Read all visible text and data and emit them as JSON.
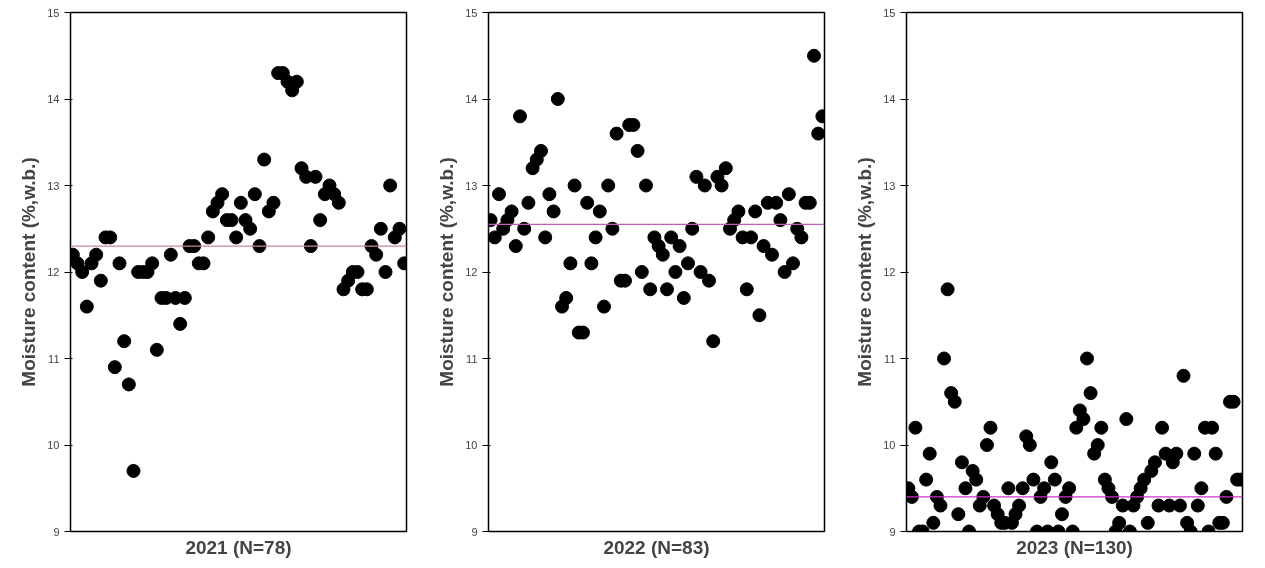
{
  "chart_data": [
    {
      "type": "scatter",
      "xlabel": "2021 (N=78)",
      "ylabel": "Moisture content (%,w.b.)",
      "ylim": [
        9,
        15
      ],
      "yticks": [
        9,
        10,
        11,
        12,
        13,
        14,
        15
      ],
      "tick_labels": "y",
      "marker": "circle",
      "grid": false,
      "categories": [
        null,
        null,
        null,
        null,
        null,
        null,
        null,
        null,
        null,
        null,
        null,
        null,
        null,
        null,
        null,
        null,
        null,
        null,
        null,
        null,
        null,
        null,
        null,
        null,
        null,
        null,
        null,
        null,
        null,
        null,
        null,
        null,
        null,
        null,
        null,
        null,
        null,
        null,
        null,
        null,
        null,
        null,
        null,
        null,
        null,
        null,
        null,
        null,
        null,
        null,
        null,
        null,
        null,
        null,
        null,
        null,
        null,
        null,
        null,
        null,
        null,
        null,
        null,
        null,
        null,
        null,
        null,
        null,
        null,
        null,
        null,
        null
      ],
      "series": [
        {
          "color": "#000000",
          "values": [
            12.2,
            12.1,
            12.0,
            11.6,
            12.1,
            12.2,
            11.9,
            12.4,
            12.4,
            10.9,
            12.1,
            11.2,
            10.7,
            9.7,
            12.0,
            12.0,
            12.0,
            12.1,
            11.1,
            11.7,
            11.7,
            12.2,
            11.7,
            11.4,
            11.7,
            12.3,
            12.3,
            12.1,
            12.1,
            12.4,
            12.7,
            12.8,
            12.9,
            12.6,
            12.6,
            12.4,
            12.8,
            12.6,
            12.5,
            12.9,
            12.3,
            13.3,
            12.7,
            12.8,
            14.3,
            14.3,
            14.2,
            14.1,
            14.2,
            13.2,
            13.1,
            12.3,
            13.1,
            12.6,
            12.9,
            13.0,
            12.9,
            12.8,
            11.8,
            11.9,
            12.0,
            12.0,
            11.8,
            11.8,
            12.3,
            12.2,
            12.5,
            12.0,
            13.0,
            12.4,
            12.5,
            12.1
          ]
        }
      ],
      "ref_lines": [
        {
          "axis": "y",
          "value": 12.3,
          "color": "#c8889a"
        }
      ]
    },
    {
      "type": "scatter",
      "xlabel": "2022 (N=83)",
      "ylabel": "Moisture content (%,w.b.)",
      "ylim": [
        9,
        15
      ],
      "yticks": [
        9,
        10,
        11,
        12,
        13,
        14,
        15
      ],
      "tick_labels": "y",
      "marker": "circle",
      "grid": false,
      "categories": [
        null,
        null,
        null,
        null,
        null,
        null,
        null,
        null,
        null,
        null,
        null,
        null,
        null,
        null,
        null,
        null,
        null,
        null,
        null,
        null,
        null,
        null,
        null,
        null,
        null,
        null,
        null,
        null,
        null,
        null,
        null,
        null,
        null,
        null,
        null,
        null,
        null,
        null,
        null,
        null,
        null,
        null,
        null,
        null,
        null,
        null,
        null,
        null,
        null,
        null,
        null,
        null,
        null,
        null,
        null,
        null,
        null,
        null,
        null,
        null,
        null,
        null,
        null,
        null,
        null,
        null,
        null,
        null,
        null,
        null,
        null,
        null,
        null,
        null,
        null,
        null,
        null,
        null,
        null,
        null
      ],
      "series": [
        {
          "color": "#000000",
          "values": [
            12.6,
            12.4,
            12.9,
            12.5,
            12.6,
            12.7,
            12.3,
            13.8,
            12.5,
            12.8,
            13.2,
            13.3,
            13.4,
            12.4,
            12.9,
            12.7,
            14.0,
            11.6,
            11.7,
            12.1,
            13.0,
            11.3,
            11.3,
            12.8,
            12.1,
            12.4,
            12.7,
            11.6,
            13.0,
            12.5,
            13.6,
            11.9,
            11.9,
            13.7,
            13.7,
            13.4,
            12.0,
            13.0,
            11.8,
            12.4,
            12.3,
            12.2,
            11.8,
            12.4,
            12.0,
            12.3,
            11.7,
            12.1,
            12.5,
            13.1,
            12.0,
            13.0,
            11.9,
            11.2,
            13.1,
            13.0,
            13.2,
            12.5,
            12.6,
            12.7,
            12.4,
            11.8,
            12.4,
            12.7,
            11.5,
            12.3,
            12.8,
            12.2,
            12.8,
            12.6,
            12.0,
            12.9,
            12.1,
            12.5,
            12.4,
            12.8,
            12.8,
            14.5,
            13.6,
            13.8
          ]
        }
      ],
      "ref_lines": [
        {
          "axis": "y",
          "value": 12.55,
          "color": "#c060b0"
        }
      ]
    },
    {
      "type": "scatter",
      "xlabel": "2023 (N=130)",
      "ylabel": "Moisture content (%,w.b.)",
      "ylim": [
        9,
        15
      ],
      "yticks": [
        9,
        10,
        11,
        12,
        13,
        14,
        15
      ],
      "tick_labels": "y",
      "marker": "circle",
      "grid": false,
      "categories": [
        null,
        null,
        null,
        null,
        null,
        null,
        null,
        null,
        null,
        null,
        null,
        null,
        null,
        null,
        null,
        null,
        null,
        null,
        null,
        null,
        null,
        null,
        null,
        null,
        null,
        null,
        null,
        null,
        null,
        null,
        null,
        null,
        null,
        null,
        null,
        null,
        null,
        null,
        null,
        null,
        null,
        null,
        null,
        null,
        null,
        null,
        null,
        null,
        null,
        null,
        null,
        null,
        null,
        null,
        null,
        null,
        null,
        null,
        null,
        null,
        null,
        null,
        null,
        null,
        null,
        null,
        null,
        null,
        null,
        null,
        null,
        null,
        null,
        null,
        null,
        null,
        null,
        null,
        null,
        null,
        null,
        null,
        null,
        null,
        null,
        null,
        null,
        null,
        null,
        null,
        null,
        null,
        null,
        null
      ],
      "series": [
        {
          "color": "#000000",
          "values": [
            9.5,
            9.4,
            10.2,
            9.0,
            9.0,
            9.6,
            9.9,
            9.1,
            9.4,
            9.3,
            11.0,
            11.8,
            10.6,
            10.5,
            9.2,
            9.8,
            9.5,
            9.0,
            9.7,
            9.6,
            9.3,
            9.4,
            10.0,
            10.2,
            9.3,
            9.2,
            9.1,
            9.1,
            9.5,
            9.1,
            9.2,
            9.3,
            9.5,
            10.1,
            10.0,
            9.6,
            9.0,
            9.4,
            9.5,
            9.0,
            9.8,
            9.6,
            9.0,
            9.2,
            9.4,
            9.5,
            9.0,
            10.2,
            10.4,
            10.3,
            11.0,
            10.6,
            9.9,
            10.0,
            10.2,
            9.6,
            9.5,
            9.4,
            9.0,
            9.1,
            9.3,
            10.3,
            9.0,
            9.3,
            9.4,
            9.5,
            9.6,
            9.1,
            9.7,
            9.8,
            9.3,
            10.2,
            9.9,
            9.3,
            9.8,
            9.9,
            9.3,
            10.8,
            9.1,
            9.0,
            9.9,
            9.3,
            9.5,
            10.2,
            9.0,
            10.2,
            9.9,
            9.1,
            9.1,
            9.4,
            10.5,
            10.5,
            9.6,
            9.6
          ]
        }
      ],
      "ref_lines": [
        {
          "axis": "y",
          "value": 9.4,
          "color": "#cc33cc"
        }
      ]
    }
  ]
}
